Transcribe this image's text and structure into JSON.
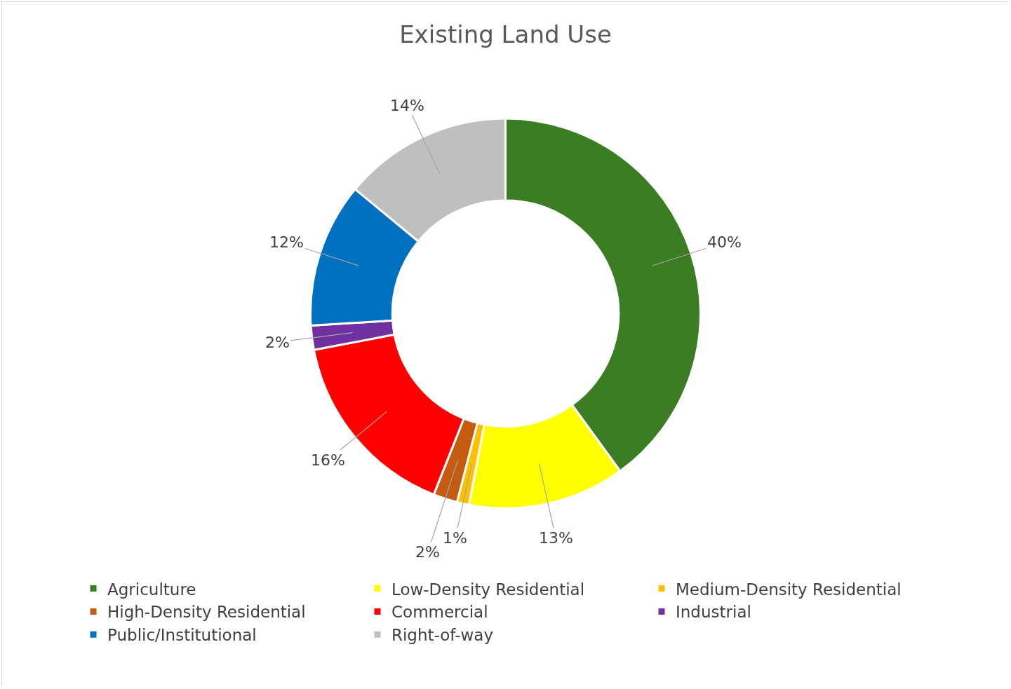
{
  "chart_data": {
    "type": "donut",
    "title": "Existing Land Use",
    "categories": [
      "Agriculture",
      "Low-Density Residential",
      "Medium-Density Residential",
      "High-Density Residential",
      "Commercial",
      "Industrial",
      "Public/Institutional",
      "Right-of-way"
    ],
    "values": [
      40,
      13,
      1,
      2,
      16,
      2,
      12,
      14
    ],
    "value_labels": [
      "40%",
      "13%",
      "1%",
      "2%",
      "16%",
      "2%",
      "12%",
      "14%"
    ],
    "colors": [
      "#3b7d23",
      "#ffff00",
      "#ffc000",
      "#c55a11",
      "#ff0000",
      "#7030a0",
      "#0070c0",
      "#bfbfbf"
    ],
    "legend": "bottom"
  }
}
